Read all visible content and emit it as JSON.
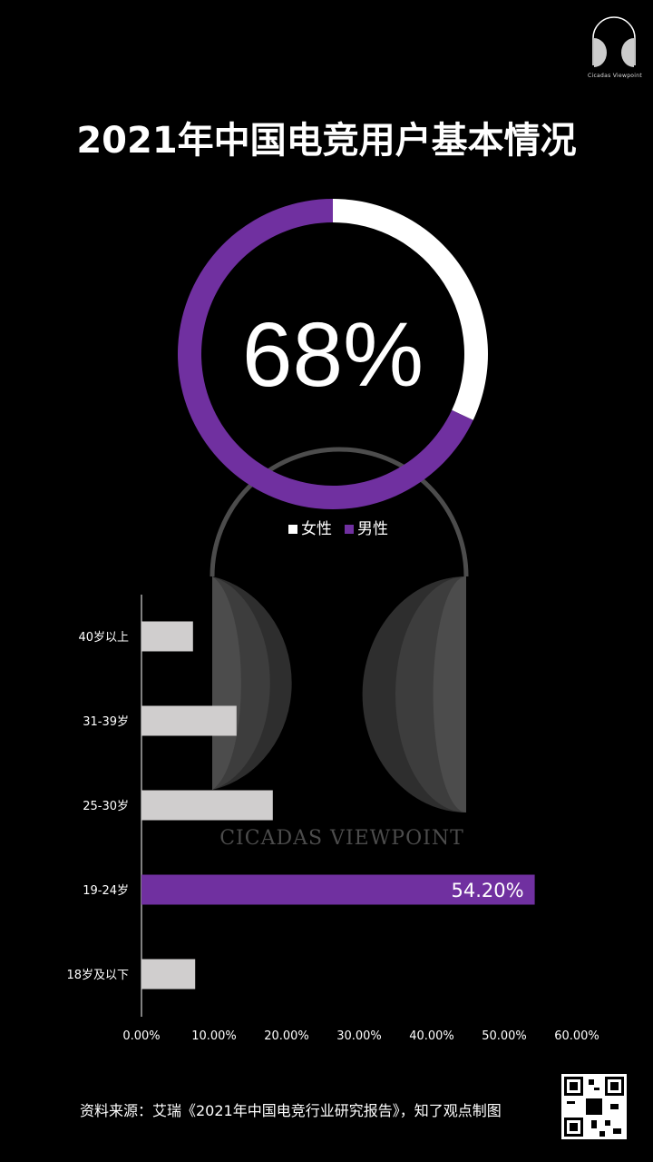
{
  "brand": {
    "name": "Cicadas Viewpoint"
  },
  "title": "2021年中国电竞用户基本情况",
  "colors": {
    "purple": "#7030a0",
    "white": "#ffffff",
    "bar_gray": "#d0cece",
    "background": "#000000"
  },
  "chart_data": [
    {
      "type": "pie",
      "style": "donut",
      "center_label": "68%",
      "categories": [
        "女性",
        "男性"
      ],
      "values": [
        32,
        68
      ],
      "colors": [
        "#ffffff",
        "#7030a0"
      ],
      "legend": "bottom"
    },
    {
      "type": "bar",
      "orientation": "horizontal",
      "categories": [
        "40岁以上",
        "31-39岁",
        "25-30岁",
        "19-24岁",
        "18岁及以下"
      ],
      "values": [
        7.1,
        13.1,
        18.1,
        54.2,
        7.4
      ],
      "colors": [
        "#d0cece",
        "#d0cece",
        "#d0cece",
        "#7030a0",
        "#d0cece"
      ],
      "data_labels": {
        "19-24岁": "54.20%"
      },
      "xlim": [
        0,
        60
      ],
      "xticks": [
        "0.00%",
        "10.00%",
        "20.00%",
        "30.00%",
        "40.00%",
        "50.00%",
        "60.00%"
      ],
      "grid": false
    }
  ],
  "footer": {
    "source": "资料来源：艾瑞《2021年中国电竞行业研究报告》，知了观点制图"
  }
}
